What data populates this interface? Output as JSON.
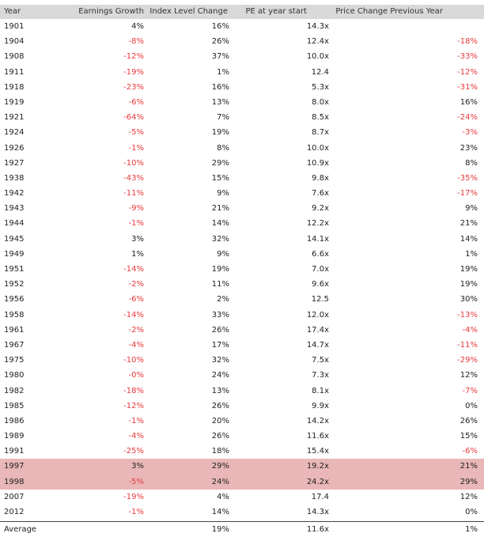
{
  "table": {
    "columns": [
      "Year",
      "Earnings Growth",
      "Index Level Change",
      "PE at year start",
      "Price Change Previous Year"
    ],
    "rows": [
      {
        "year": "1901",
        "eg": "4%",
        "il": "16%",
        "pe": "14.3x",
        "pc": ""
      },
      {
        "year": "1904",
        "eg": "-8%",
        "il": "26%",
        "pe": "12.4x",
        "pc": "-18%"
      },
      {
        "year": "1908",
        "eg": "-12%",
        "il": "37%",
        "pe": "10.0x",
        "pc": "-33%"
      },
      {
        "year": "1911",
        "eg": "-19%",
        "il": "1%",
        "pe": "12.4",
        "pc": "-12%"
      },
      {
        "year": "1918",
        "eg": "-23%",
        "il": "16%",
        "pe": "5.3x",
        "pc": "-31%"
      },
      {
        "year": "1919",
        "eg": "-6%",
        "il": "13%",
        "pe": "8.0x",
        "pc": "16%"
      },
      {
        "year": "1921",
        "eg": "-64%",
        "il": "7%",
        "pe": "8.5x",
        "pc": "-24%"
      },
      {
        "year": "1924",
        "eg": "-5%",
        "il": "19%",
        "pe": "8.7x",
        "pc": "-3%"
      },
      {
        "year": "1926",
        "eg": "-1%",
        "il": "8%",
        "pe": "10.0x",
        "pc": "23%"
      },
      {
        "year": "1927",
        "eg": "-10%",
        "il": "29%",
        "pe": "10.9x",
        "pc": "8%"
      },
      {
        "year": "1938",
        "eg": "-43%",
        "il": "15%",
        "pe": "9.8x",
        "pc": "-35%"
      },
      {
        "year": "1942",
        "eg": "-11%",
        "il": "9%",
        "pe": "7.6x",
        "pc": "-17%"
      },
      {
        "year": "1943",
        "eg": "-9%",
        "il": "21%",
        "pe": "9.2x",
        "pc": "9%"
      },
      {
        "year": "1944",
        "eg": "-1%",
        "il": "14%",
        "pe": "12.2x",
        "pc": "21%"
      },
      {
        "year": "1945",
        "eg": "3%",
        "il": "32%",
        "pe": "14.1x",
        "pc": "14%"
      },
      {
        "year": "1949",
        "eg": "1%",
        "il": "9%",
        "pe": "6.6x",
        "pc": "1%"
      },
      {
        "year": "1951",
        "eg": "-14%",
        "il": "19%",
        "pe": "7.0x",
        "pc": "19%"
      },
      {
        "year": "1952",
        "eg": "-2%",
        "il": "11%",
        "pe": "9.6x",
        "pc": "19%"
      },
      {
        "year": "1956",
        "eg": "-6%",
        "il": "2%",
        "pe": "12.5",
        "pc": "30%"
      },
      {
        "year": "1958",
        "eg": "-14%",
        "il": "33%",
        "pe": "12.0x",
        "pc": "-13%"
      },
      {
        "year": "1961",
        "eg": "-2%",
        "il": "26%",
        "pe": "17.4x",
        "pc": "-4%"
      },
      {
        "year": "1967",
        "eg": "-4%",
        "il": "17%",
        "pe": "14.7x",
        "pc": "-11%"
      },
      {
        "year": "1975",
        "eg": "-10%",
        "il": "32%",
        "pe": "7.5x",
        "pc": "-29%"
      },
      {
        "year": "1980",
        "eg": "-0%",
        "il": "24%",
        "pe": "7.3x",
        "pc": "12%"
      },
      {
        "year": "1982",
        "eg": "-18%",
        "il": "13%",
        "pe": "8.1x",
        "pc": "-7%"
      },
      {
        "year": "1985",
        "eg": "-12%",
        "il": "26%",
        "pe": "9.9x",
        "pc": "0%"
      },
      {
        "year": "1986",
        "eg": "-1%",
        "il": "20%",
        "pe": "14.2x",
        "pc": "26%"
      },
      {
        "year": "1989",
        "eg": "-4%",
        "il": "26%",
        "pe": "11.6x",
        "pc": "15%"
      },
      {
        "year": "1991",
        "eg": "-25%",
        "il": "18%",
        "pe": "15.4x",
        "pc": "-6%"
      },
      {
        "year": "1997",
        "eg": "3%",
        "il": "29%",
        "pe": "19.2x",
        "pc": "21%",
        "highlight": true
      },
      {
        "year": "1998",
        "eg": "-5%",
        "il": "24%",
        "pe": "24.2x",
        "pc": "29%",
        "highlight": true
      },
      {
        "year": "2007",
        "eg": "-19%",
        "il": "4%",
        "pe": "17.4",
        "pc": "12%"
      },
      {
        "year": "2012",
        "eg": "-1%",
        "il": "14%",
        "pe": "14.3x",
        "pc": "0%"
      }
    ],
    "average": {
      "year": "Average",
      "eg": "",
      "il": "19%",
      "pe": "11.6x",
      "pc": "1%"
    }
  },
  "colors": {
    "negative": "#e8393d",
    "highlight": "#e9b7b7",
    "header": "#d9d9d9"
  }
}
